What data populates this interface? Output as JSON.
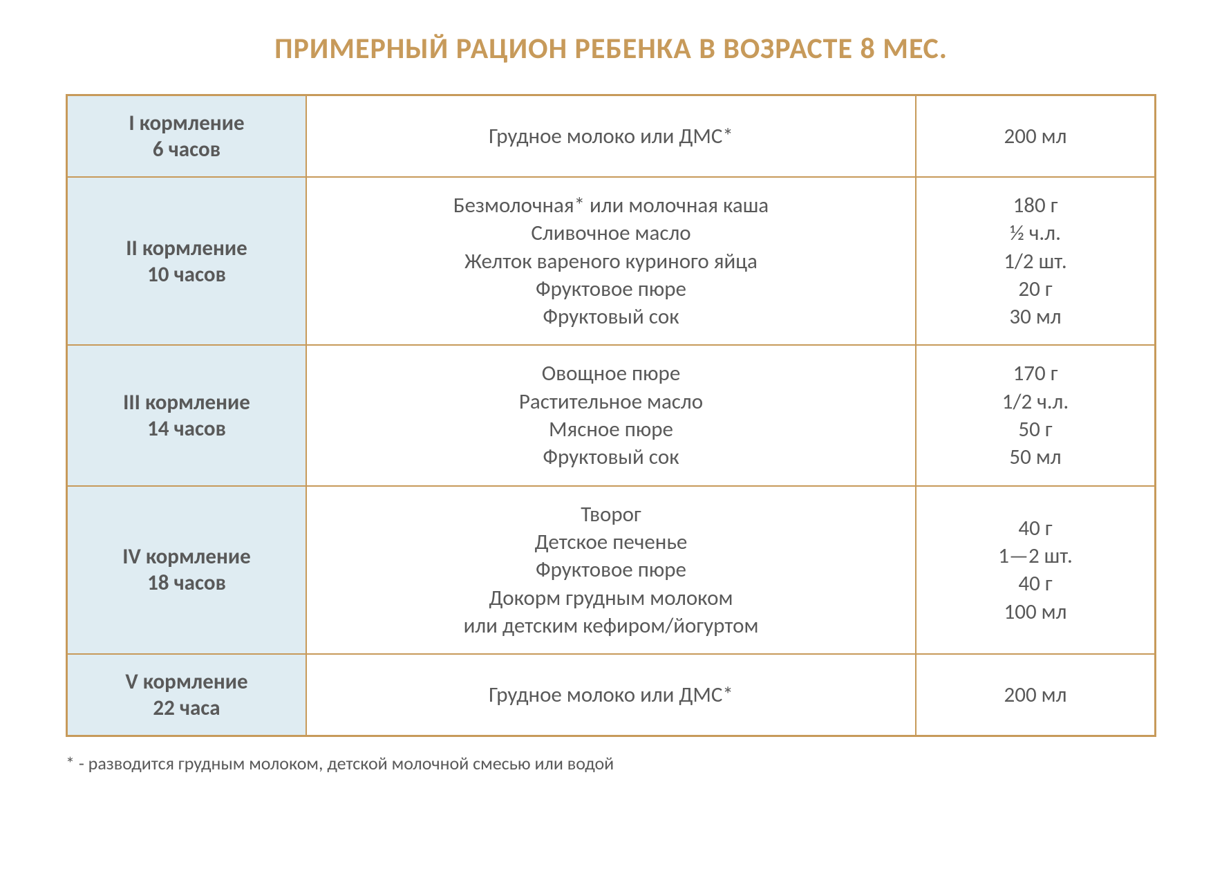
{
  "title": "ПРИМЕРНЫЙ РАЦИОН РЕБЕНКА В ВОЗРАСТЕ 8 МЕС.",
  "colors": {
    "title_color": "#c79a5a",
    "border_color": "#c79a5a",
    "text_color": "#595959",
    "feeding_bg": "#dfecf2",
    "footnote_color": "#595959",
    "page_bg": "#ffffff"
  },
  "rows": [
    {
      "feeding_label": "I кормление",
      "feeding_time": "6 часов",
      "foods": [
        "Грудное молоко или ДМС*"
      ],
      "amounts": [
        "200 мл"
      ]
    },
    {
      "feeding_label": "II кормление",
      "feeding_time": "10 часов",
      "foods": [
        "Безмолочная* или молочная каша",
        "Сливочное масло",
        "Желток вареного куриного яйца",
        "Фруктовое пюре",
        "Фруктовый сок"
      ],
      "amounts": [
        "180 г",
        "½  ч.л.",
        "1/2 шт.",
        "20 г",
        "30 мл"
      ]
    },
    {
      "feeding_label": "III кормление",
      "feeding_time": "14 часов",
      "foods": [
        "Овощное пюре",
        "Растительное масло",
        "Мясное пюре",
        "Фруктовый сок"
      ],
      "amounts": [
        "170 г",
        "1/2 ч.л.",
        "50 г",
        "50 мл"
      ]
    },
    {
      "feeding_label": "IV кормление",
      "feeding_time": "18 часов",
      "foods": [
        "Творог",
        "Детское печенье",
        "Фруктовое пюре",
        "Докорм грудным молоком",
        "или детским кефиром/йогуртом"
      ],
      "amounts": [
        "40 г",
        "1—2 шт.",
        "40 г",
        "100 мл"
      ]
    },
    {
      "feeding_label": "V кормление",
      "feeding_time": "22 часа",
      "foods": [
        "Грудное молоко или ДМС*"
      ],
      "amounts": [
        "200 мл"
      ]
    }
  ],
  "footnote": "* - разводится грудным молоком, детской молочной смесью или водой"
}
